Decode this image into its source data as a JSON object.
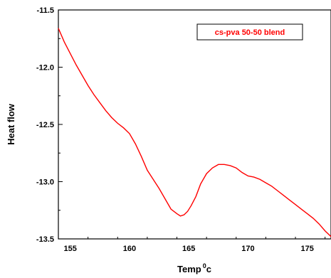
{
  "chart_data": {
    "type": "line",
    "title": "",
    "xlabel": "Temp",
    "xlabel_sup": "0",
    "xlabel_suffix": "c",
    "ylabel": "Heat flow",
    "xlim": [
      154,
      177
    ],
    "ylim": [
      -13.5,
      -11.5
    ],
    "x_ticks": [
      155,
      160,
      165,
      170,
      175
    ],
    "x_tick_labels": [
      "155",
      "160",
      "165",
      "170",
      "175"
    ],
    "y_ticks": [
      -11.5,
      -12.0,
      -12.5,
      -13.0,
      -13.5
    ],
    "y_tick_labels": [
      "-11.5",
      "-12.0",
      "-12.5",
      "-13.0",
      "-13.5"
    ],
    "grid": false,
    "legend_position": "top-right",
    "series": [
      {
        "name": "cs-pva 50-50 blend",
        "color": "#ff0000",
        "x": [
          154.0,
          154.5,
          155.0,
          155.5,
          156.0,
          156.5,
          157.0,
          157.5,
          158.0,
          158.5,
          159.0,
          159.5,
          160.0,
          160.5,
          161.0,
          161.5,
          162.0,
          162.5,
          163.0,
          163.5,
          164.0,
          164.3,
          164.6,
          164.9,
          165.2,
          165.6,
          166.0,
          166.5,
          167.0,
          167.5,
          168.0,
          168.5,
          169.0,
          169.5,
          170.0,
          170.5,
          171.0,
          171.5,
          172.0,
          172.5,
          173.0,
          173.5,
          174.0,
          174.5,
          175.0,
          175.5,
          176.0,
          176.5,
          177.0
        ],
        "y": [
          -11.66,
          -11.78,
          -11.88,
          -11.98,
          -12.07,
          -12.16,
          -12.24,
          -12.31,
          -12.38,
          -12.44,
          -12.49,
          -12.53,
          -12.58,
          -12.67,
          -12.78,
          -12.9,
          -12.98,
          -13.06,
          -13.15,
          -13.24,
          -13.28,
          -13.3,
          -13.29,
          -13.26,
          -13.21,
          -13.13,
          -13.02,
          -12.93,
          -12.88,
          -12.85,
          -12.85,
          -12.86,
          -12.88,
          -12.92,
          -12.95,
          -12.96,
          -12.98,
          -13.01,
          -13.04,
          -13.08,
          -13.12,
          -13.16,
          -13.2,
          -13.24,
          -13.28,
          -13.32,
          -13.37,
          -13.43,
          -13.48
        ]
      }
    ]
  }
}
